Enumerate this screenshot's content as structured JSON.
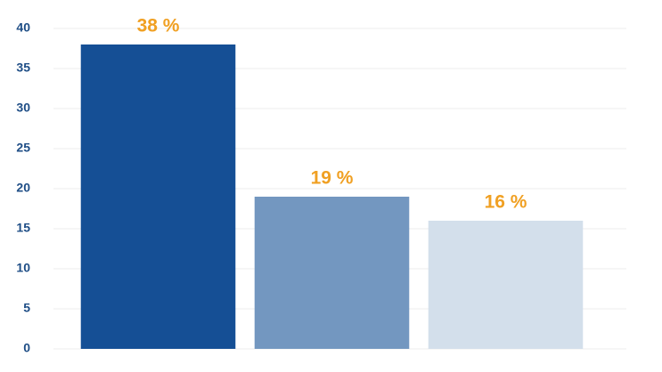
{
  "chart_data": {
    "type": "bar",
    "categories": [
      null,
      null,
      null
    ],
    "values": [
      38,
      19,
      16
    ],
    "value_labels": [
      "38 %",
      "19 %",
      "16 %"
    ],
    "colors": [
      "#154f95",
      "#7397c0",
      "#d3dfeb"
    ],
    "ylim": [
      0,
      40
    ],
    "yticks": [
      0,
      5,
      10,
      15,
      20,
      25,
      30,
      35,
      40
    ],
    "grid": true
  }
}
